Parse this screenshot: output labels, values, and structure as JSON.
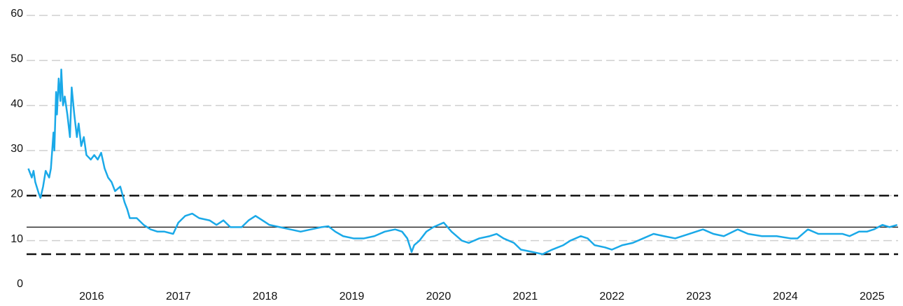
{
  "chart_data": {
    "type": "line",
    "x": [
      2015.27,
      2015.31,
      2015.33,
      2015.35,
      2015.39,
      2015.41,
      2015.44,
      2015.47,
      2015.51,
      2015.53,
      2015.56,
      2015.57,
      2015.59,
      2015.6,
      2015.62,
      2015.64,
      2015.65,
      2015.67,
      2015.69,
      2015.72,
      2015.75,
      2015.77,
      2015.8,
      2015.83,
      2015.85,
      2015.88,
      2015.91,
      2015.94,
      2015.99,
      2016.03,
      2016.07,
      2016.11,
      2016.15,
      2016.19,
      2016.23,
      2016.27,
      2016.33,
      2016.38,
      2016.41,
      2016.44,
      2016.52,
      2016.6,
      2016.68,
      2016.76,
      2016.84,
      2016.94,
      2017.0,
      2017.08,
      2017.16,
      2017.24,
      2017.36,
      2017.44,
      2017.52,
      2017.6,
      2017.73,
      2017.81,
      2017.89,
      2017.97,
      2018.05,
      2018.17,
      2018.29,
      2018.41,
      2018.53,
      2018.65,
      2018.73,
      2018.81,
      2018.9,
      2019.02,
      2019.14,
      2019.26,
      2019.38,
      2019.5,
      2019.58,
      2019.64,
      2019.69,
      2019.72,
      2019.78,
      2019.86,
      2019.94,
      2020.06,
      2020.15,
      2020.27,
      2020.35,
      2020.47,
      2020.59,
      2020.67,
      2020.75,
      2020.87,
      2020.95,
      2021.08,
      2021.2,
      2021.31,
      2021.44,
      2021.52,
      2021.64,
      2021.72,
      2021.8,
      2021.92,
      2022.0,
      2022.12,
      2022.24,
      2022.36,
      2022.48,
      2022.6,
      2022.73,
      2022.89,
      2023.05,
      2023.17,
      2023.29,
      2023.45,
      2023.57,
      2023.73,
      2023.9,
      2024.06,
      2024.14,
      2024.26,
      2024.38,
      2024.54,
      2024.66,
      2024.74,
      2024.85,
      2024.94,
      2025.02,
      2025.12,
      2025.2,
      2025.29
    ],
    "series": [
      {
        "color": "#1aa9e8",
        "values": [
          26,
          24,
          25.5,
          23,
          20.5,
          19.5,
          22,
          25.5,
          24,
          26,
          34,
          30,
          43,
          38,
          46,
          41,
          48,
          40,
          42,
          38,
          33,
          44,
          38,
          33,
          36,
          31,
          33,
          29,
          28,
          29,
          28,
          29.5,
          26,
          24,
          23,
          21,
          22,
          18.5,
          17,
          15,
          15,
          13.5,
          12.5,
          12,
          12,
          11.5,
          14,
          15.5,
          16,
          15,
          14.5,
          13.5,
          14.5,
          13,
          13,
          14.5,
          15.5,
          14.5,
          13.5,
          13,
          12.5,
          12,
          12.5,
          13,
          13.2,
          12,
          11,
          10.5,
          10.5,
          11,
          12,
          12.5,
          12,
          10.5,
          7.5,
          9,
          10,
          12,
          13,
          14,
          12,
          10,
          9.5,
          10.5,
          11,
          11.5,
          10.5,
          9.5,
          8,
          7.5,
          7,
          8,
          9,
          10,
          11,
          10.5,
          9,
          8.5,
          8,
          9,
          9.5,
          10.5,
          11.5,
          11,
          10.5,
          11.5,
          12.5,
          11.5,
          11,
          12.5,
          11.5,
          11,
          11,
          10.5,
          10.5,
          12.5,
          11.5,
          11.5,
          11.5,
          11,
          12,
          12,
          12.5,
          13.5,
          13,
          13.5
        ]
      }
    ],
    "xlim": [
      2015.25,
      2025.3
    ],
    "xticks": [
      2016,
      2017,
      2018,
      2019,
      2020,
      2021,
      2022,
      2023,
      2024,
      2025
    ],
    "ylim": [
      0,
      60
    ],
    "yticks": [
      0,
      10,
      20,
      30,
      40,
      50,
      60
    ],
    "grid": true,
    "reference_lines": [
      {
        "value": 20,
        "style": "dashed"
      },
      {
        "value": 13,
        "style": "solid"
      },
      {
        "value": 7,
        "style": "dashed"
      }
    ]
  }
}
